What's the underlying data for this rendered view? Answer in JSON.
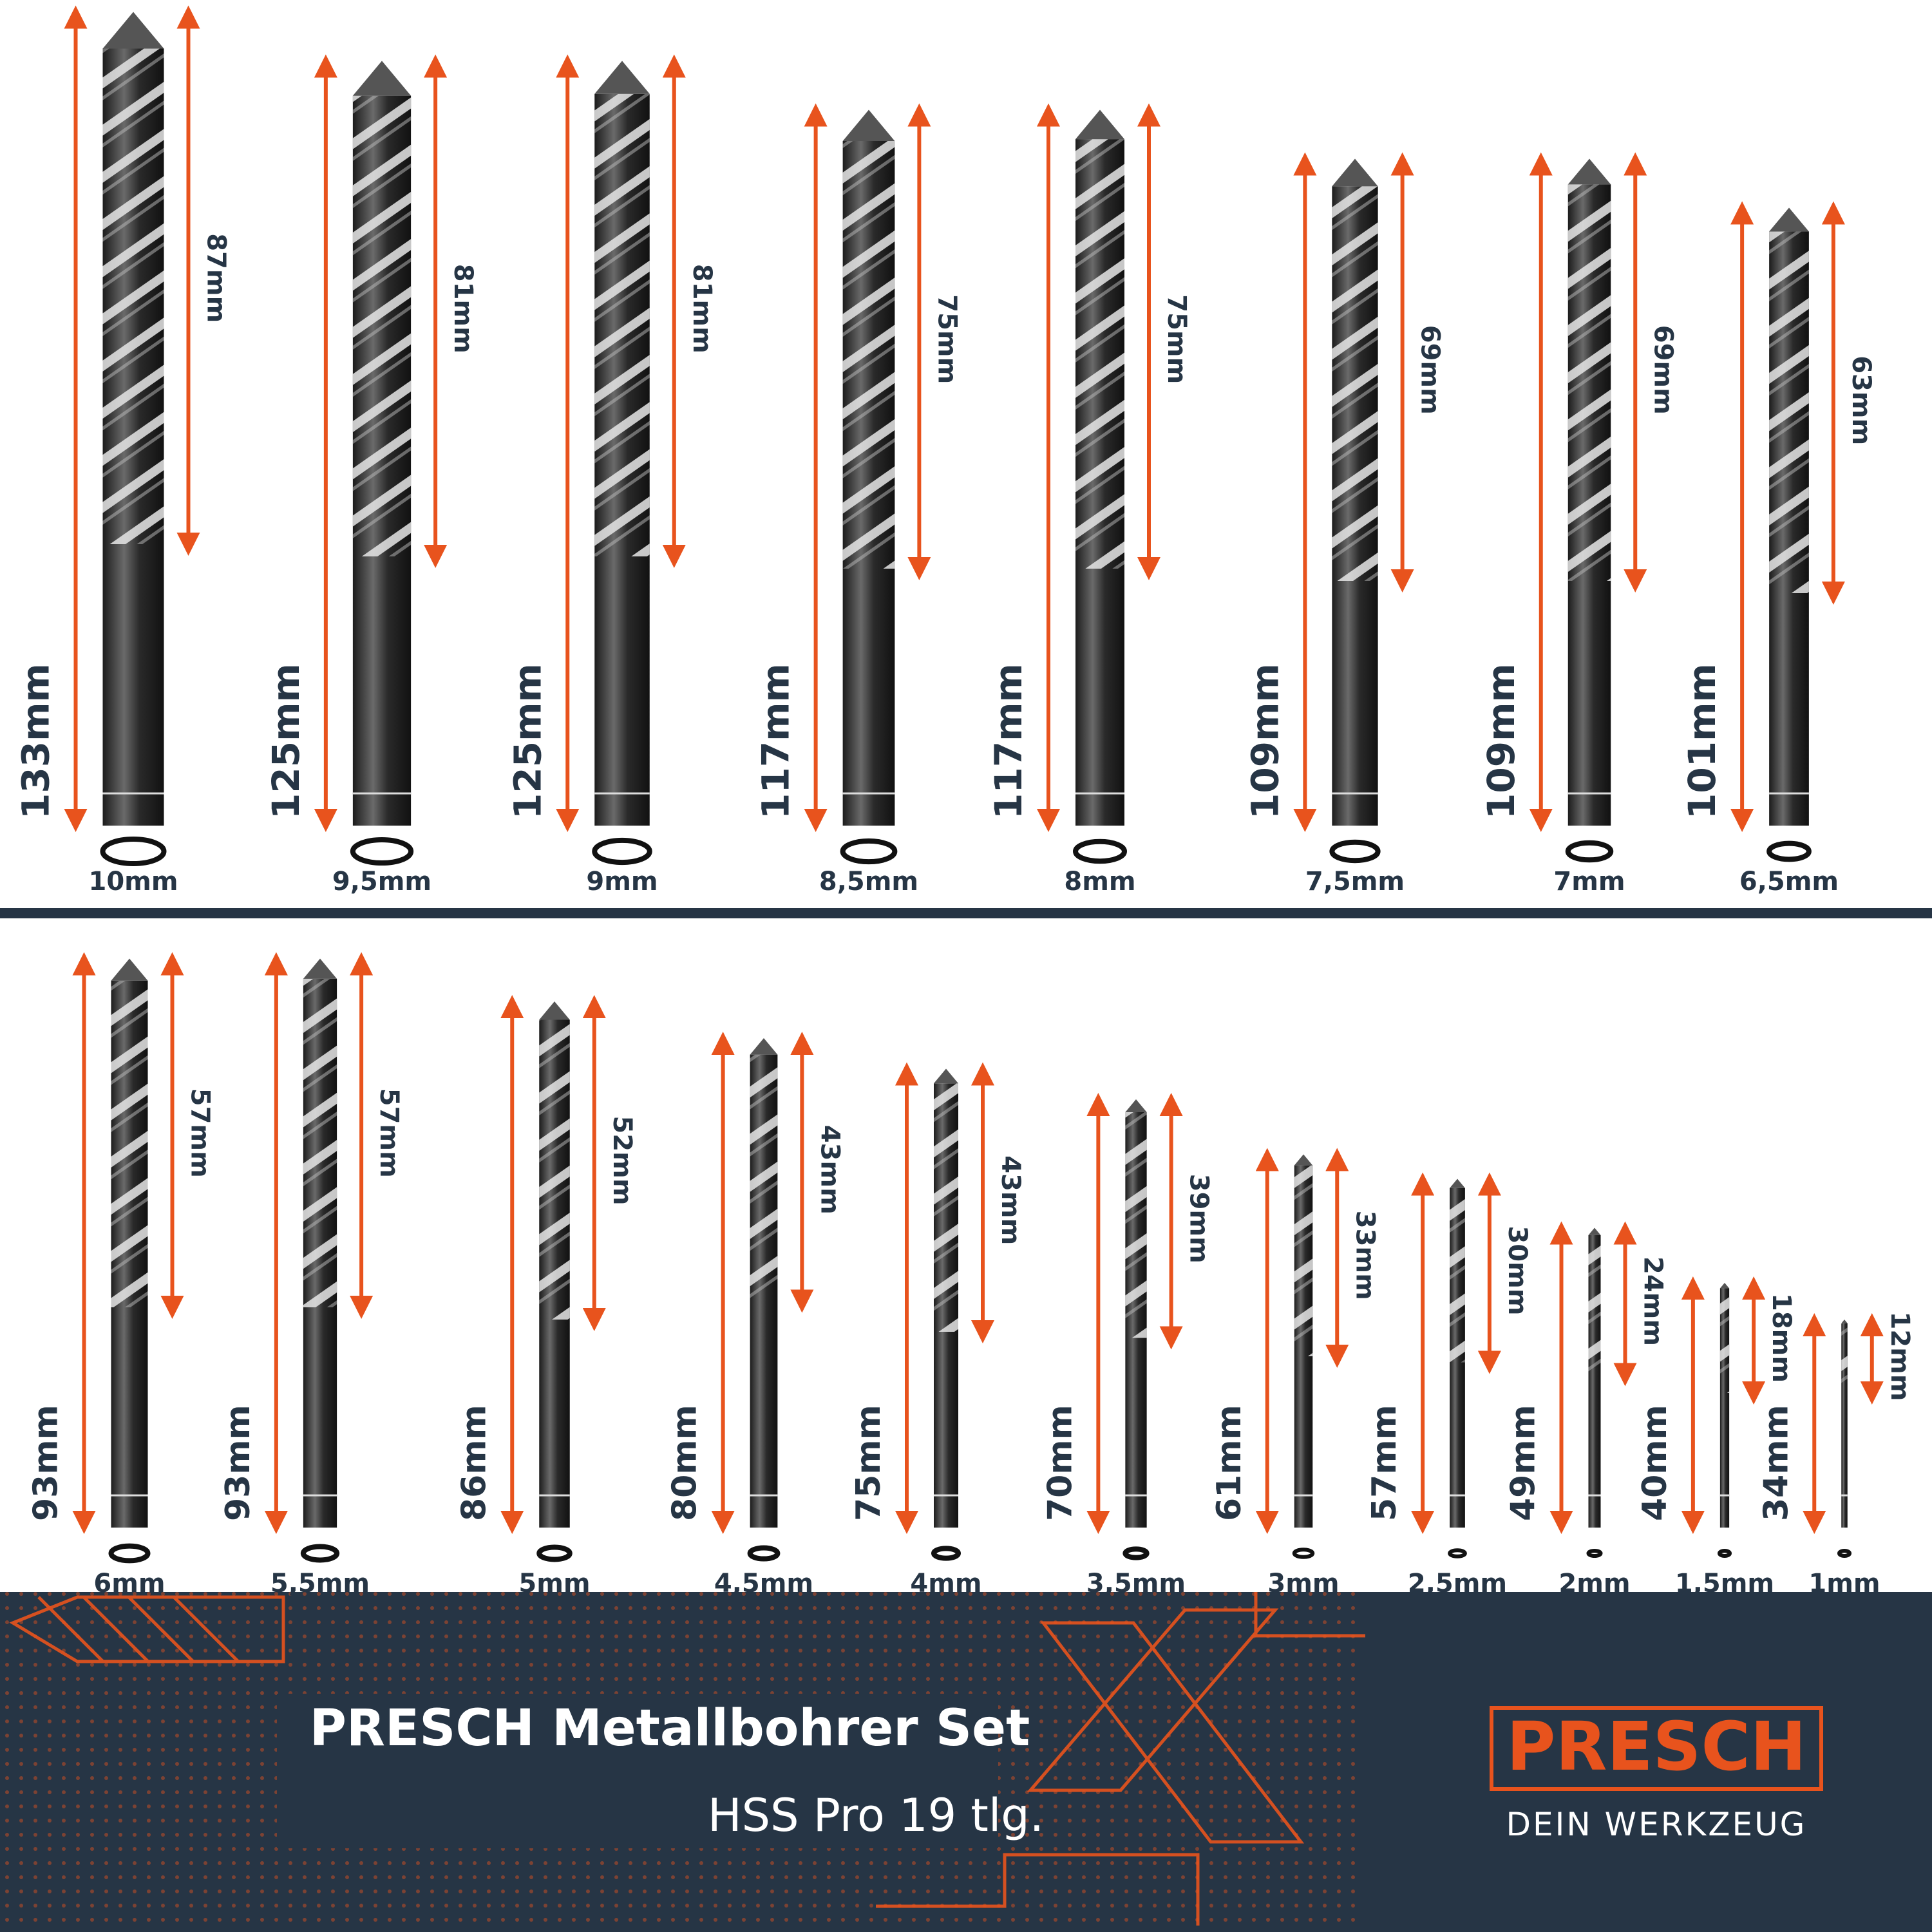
{
  "drills": [
    {
      "diameter": "10mm",
      "total": "133mm",
      "flute": "87mm"
    },
    {
      "diameter": "9,5mm",
      "total": "125mm",
      "flute": "81mm"
    },
    {
      "diameter": "9mm",
      "total": "125mm",
      "flute": "81mm"
    },
    {
      "diameter": "8,5mm",
      "total": "117mm",
      "flute": "75mm"
    },
    {
      "diameter": "8mm",
      "total": "117mm",
      "flute": "75mm"
    },
    {
      "diameter": "7,5mm",
      "total": "109mm",
      "flute": "69mm"
    },
    {
      "diameter": "7mm",
      "total": "109mm",
      "flute": "69mm"
    },
    {
      "diameter": "6,5mm",
      "total": "101mm",
      "flute": "63mm"
    },
    {
      "diameter": "6mm",
      "total": "93mm",
      "flute": "57mm"
    },
    {
      "diameter": "5,5mm",
      "total": "93mm",
      "flute": "57mm"
    },
    {
      "diameter": "5mm",
      "total": "86mm",
      "flute": "52mm"
    },
    {
      "diameter": "4,5mm",
      "total": "80mm",
      "flute": "43mm"
    },
    {
      "diameter": "4mm",
      "total": "75mm",
      "flute": "43mm"
    },
    {
      "diameter": "3,5mm",
      "total": "70mm",
      "flute": "39mm"
    },
    {
      "diameter": "3mm",
      "total": "61mm",
      "flute": "33mm"
    },
    {
      "diameter": "2,5mm",
      "total": "57mm",
      "flute": "30mm"
    },
    {
      "diameter": "2mm",
      "total": "49mm",
      "flute": "24mm"
    },
    {
      "diameter": "1,5mm",
      "total": "40mm",
      "flute": "18mm"
    },
    {
      "diameter": "1mm",
      "total": "34mm",
      "flute": "12mm"
    }
  ],
  "footer": {
    "title": "PRESCH Metallbohrer Set",
    "subtitle": "HSS Pro 19 tlg."
  },
  "brand": {
    "name": "PRESCH",
    "tagline": "DEIN WERKZEUG"
  }
}
